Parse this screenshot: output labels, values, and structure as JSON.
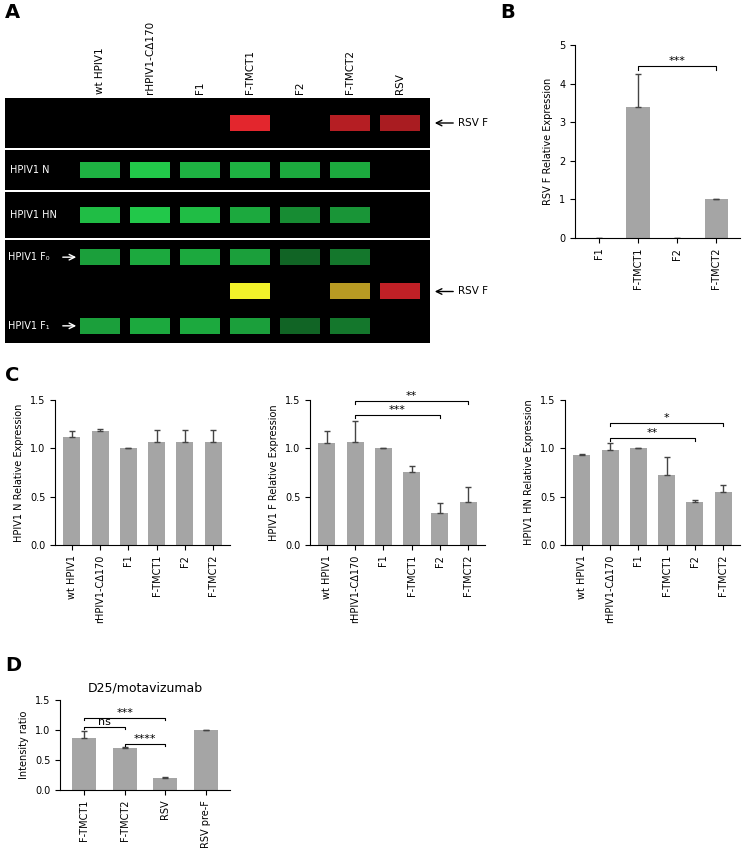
{
  "blot": {
    "panel": "A",
    "lanes": [
      "wt HPIV1",
      "rHPIV1-CΔ170",
      "F1",
      "F-TMCT1",
      "F2",
      "F-TMCT2",
      "RSV"
    ],
    "strips": [
      {
        "bands": [
          {
            "label": "RSV F",
            "side": "right",
            "color": "#e3262d",
            "intensity": [
              0,
              0,
              0,
              1,
              0,
              0.8,
              0.75
            ]
          }
        ]
      },
      {
        "label": "HPIV1 N",
        "bands": [
          {
            "color": "#22c84a",
            "intensity": [
              0.9,
              1,
              0.9,
              0.9,
              0.85,
              0.85,
              0
            ]
          }
        ]
      },
      {
        "label": "HPIV1 HN",
        "bands": [
          {
            "color": "#22c84a",
            "intensity": [
              0.95,
              1,
              0.95,
              0.85,
              0.7,
              0.75,
              0
            ]
          }
        ]
      },
      {
        "bands": [
          {
            "label": "HPIV1 F₀",
            "side": "left",
            "color": "#22c84a",
            "intensity": [
              0.8,
              0.85,
              0.85,
              0.8,
              0.5,
              0.6,
              0
            ]
          },
          {
            "label": "RSV F",
            "side": "right",
            "colors": [
              "#e3262d",
              "#e3262d",
              "#e3262d",
              "#f2f22a",
              "#e3262d",
              "#d9b62a",
              "#e3262d"
            ],
            "intensity": [
              0,
              0,
              0,
              1,
              0,
              0.85,
              0.85
            ]
          },
          {
            "label": "HPIV1 F₁",
            "side": "left",
            "color": "#22c84a",
            "intensity": [
              0.8,
              0.85,
              0.85,
              0.8,
              0.5,
              0.6,
              0
            ]
          }
        ]
      }
    ]
  },
  "chart_data": [
    {
      "type": "bar",
      "panel": "B",
      "ylabel": "RSV F Relative Expression",
      "categories": [
        "F1",
        "F-TMCT1",
        "F2",
        "F-TMCT2"
      ],
      "values": [
        0,
        3.4,
        0,
        1.0
      ],
      "errors": [
        0,
        0.85,
        0,
        0
      ],
      "color": "#a5a5a5",
      "ylim": [
        0,
        5
      ],
      "yticks": [
        0,
        1,
        2,
        3,
        4,
        5
      ],
      "annotations": [
        {
          "from": "F-TMCT1",
          "to": "F-TMCT2",
          "text": "***"
        }
      ]
    },
    {
      "type": "bar",
      "panel": "C",
      "ylabel": "HPIV1 N Relative Expression",
      "categories": [
        "wt HPIV1",
        "rHPIV1-CΔ170",
        "F1",
        "F-TMCT1",
        "F2",
        "F-TMCT2"
      ],
      "values": [
        1.12,
        1.18,
        1.0,
        1.07,
        1.07,
        1.07
      ],
      "errors": [
        0.06,
        0.02,
        0,
        0.12,
        0.12,
        0.12
      ],
      "color": "#a5a5a5",
      "ylim": [
        0.0,
        1.5
      ],
      "yticks": [
        0.0,
        0.5,
        1.0,
        1.5
      ],
      "annotations": []
    },
    {
      "type": "bar",
      "ylabel": "HPIV1 F Relative Expression",
      "categories": [
        "wt HPIV1",
        "rHPIV1-CΔ170",
        "F1",
        "F-TMCT1",
        "F2",
        "F-TMCT2"
      ],
      "values": [
        1.05,
        1.07,
        1.0,
        0.76,
        0.33,
        0.45
      ],
      "errors": [
        0.13,
        0.21,
        0,
        0.06,
        0.1,
        0.15
      ],
      "color": "#a5a5a5",
      "ylim": [
        0.0,
        1.5
      ],
      "yticks": [
        0.0,
        0.5,
        1.0,
        1.5
      ],
      "annotations": [
        {
          "from": "rHPIV1-CΔ170",
          "to": "F2",
          "text": "***"
        },
        {
          "from": "rHPIV1-CΔ170",
          "to": "F-TMCT2",
          "text": "**"
        }
      ]
    },
    {
      "type": "bar",
      "ylabel": "HPIV1 HN Relative Expression",
      "categories": [
        "wt HPIV1",
        "rHPIV1-CΔ170",
        "F1",
        "F-TMCT1",
        "F2",
        "F-TMCT2"
      ],
      "values": [
        0.93,
        0.98,
        1.0,
        0.72,
        0.44,
        0.55
      ],
      "errors": [
        0.01,
        0.07,
        0,
        0.19,
        0.03,
        0.07
      ],
      "color": "#a5a5a5",
      "ylim": [
        0.0,
        1.5
      ],
      "yticks": [
        0.0,
        0.5,
        1.0,
        1.5
      ],
      "annotations": [
        {
          "from": "rHPIV1-CΔ170",
          "to": "F2",
          "text": "**"
        },
        {
          "from": "rHPIV1-CΔ170",
          "to": "F-TMCT2",
          "text": "*"
        }
      ]
    },
    {
      "type": "bar",
      "panel": "D",
      "title": "D25/motavizumab",
      "ylabel": "Intensity ratio",
      "categories": [
        "F-TMCT1",
        "F-TMCT2",
        "RSV",
        "RSV pre-F"
      ],
      "values": [
        0.87,
        0.7,
        0.2,
        1.0
      ],
      "errors": [
        0.12,
        0.01,
        0.01,
        0
      ],
      "color": "#a5a5a5",
      "ylim": [
        0.0,
        1.5
      ],
      "yticks": [
        0.0,
        0.5,
        1.0,
        1.5
      ],
      "annotations": [
        {
          "from": "F-TMCT2",
          "to": "RSV",
          "text": "****"
        },
        {
          "from": "F-TMCT1",
          "to": "F-TMCT2",
          "text": "ns"
        },
        {
          "from": "F-TMCT1",
          "to": "RSV",
          "text": "***"
        }
      ]
    }
  ]
}
